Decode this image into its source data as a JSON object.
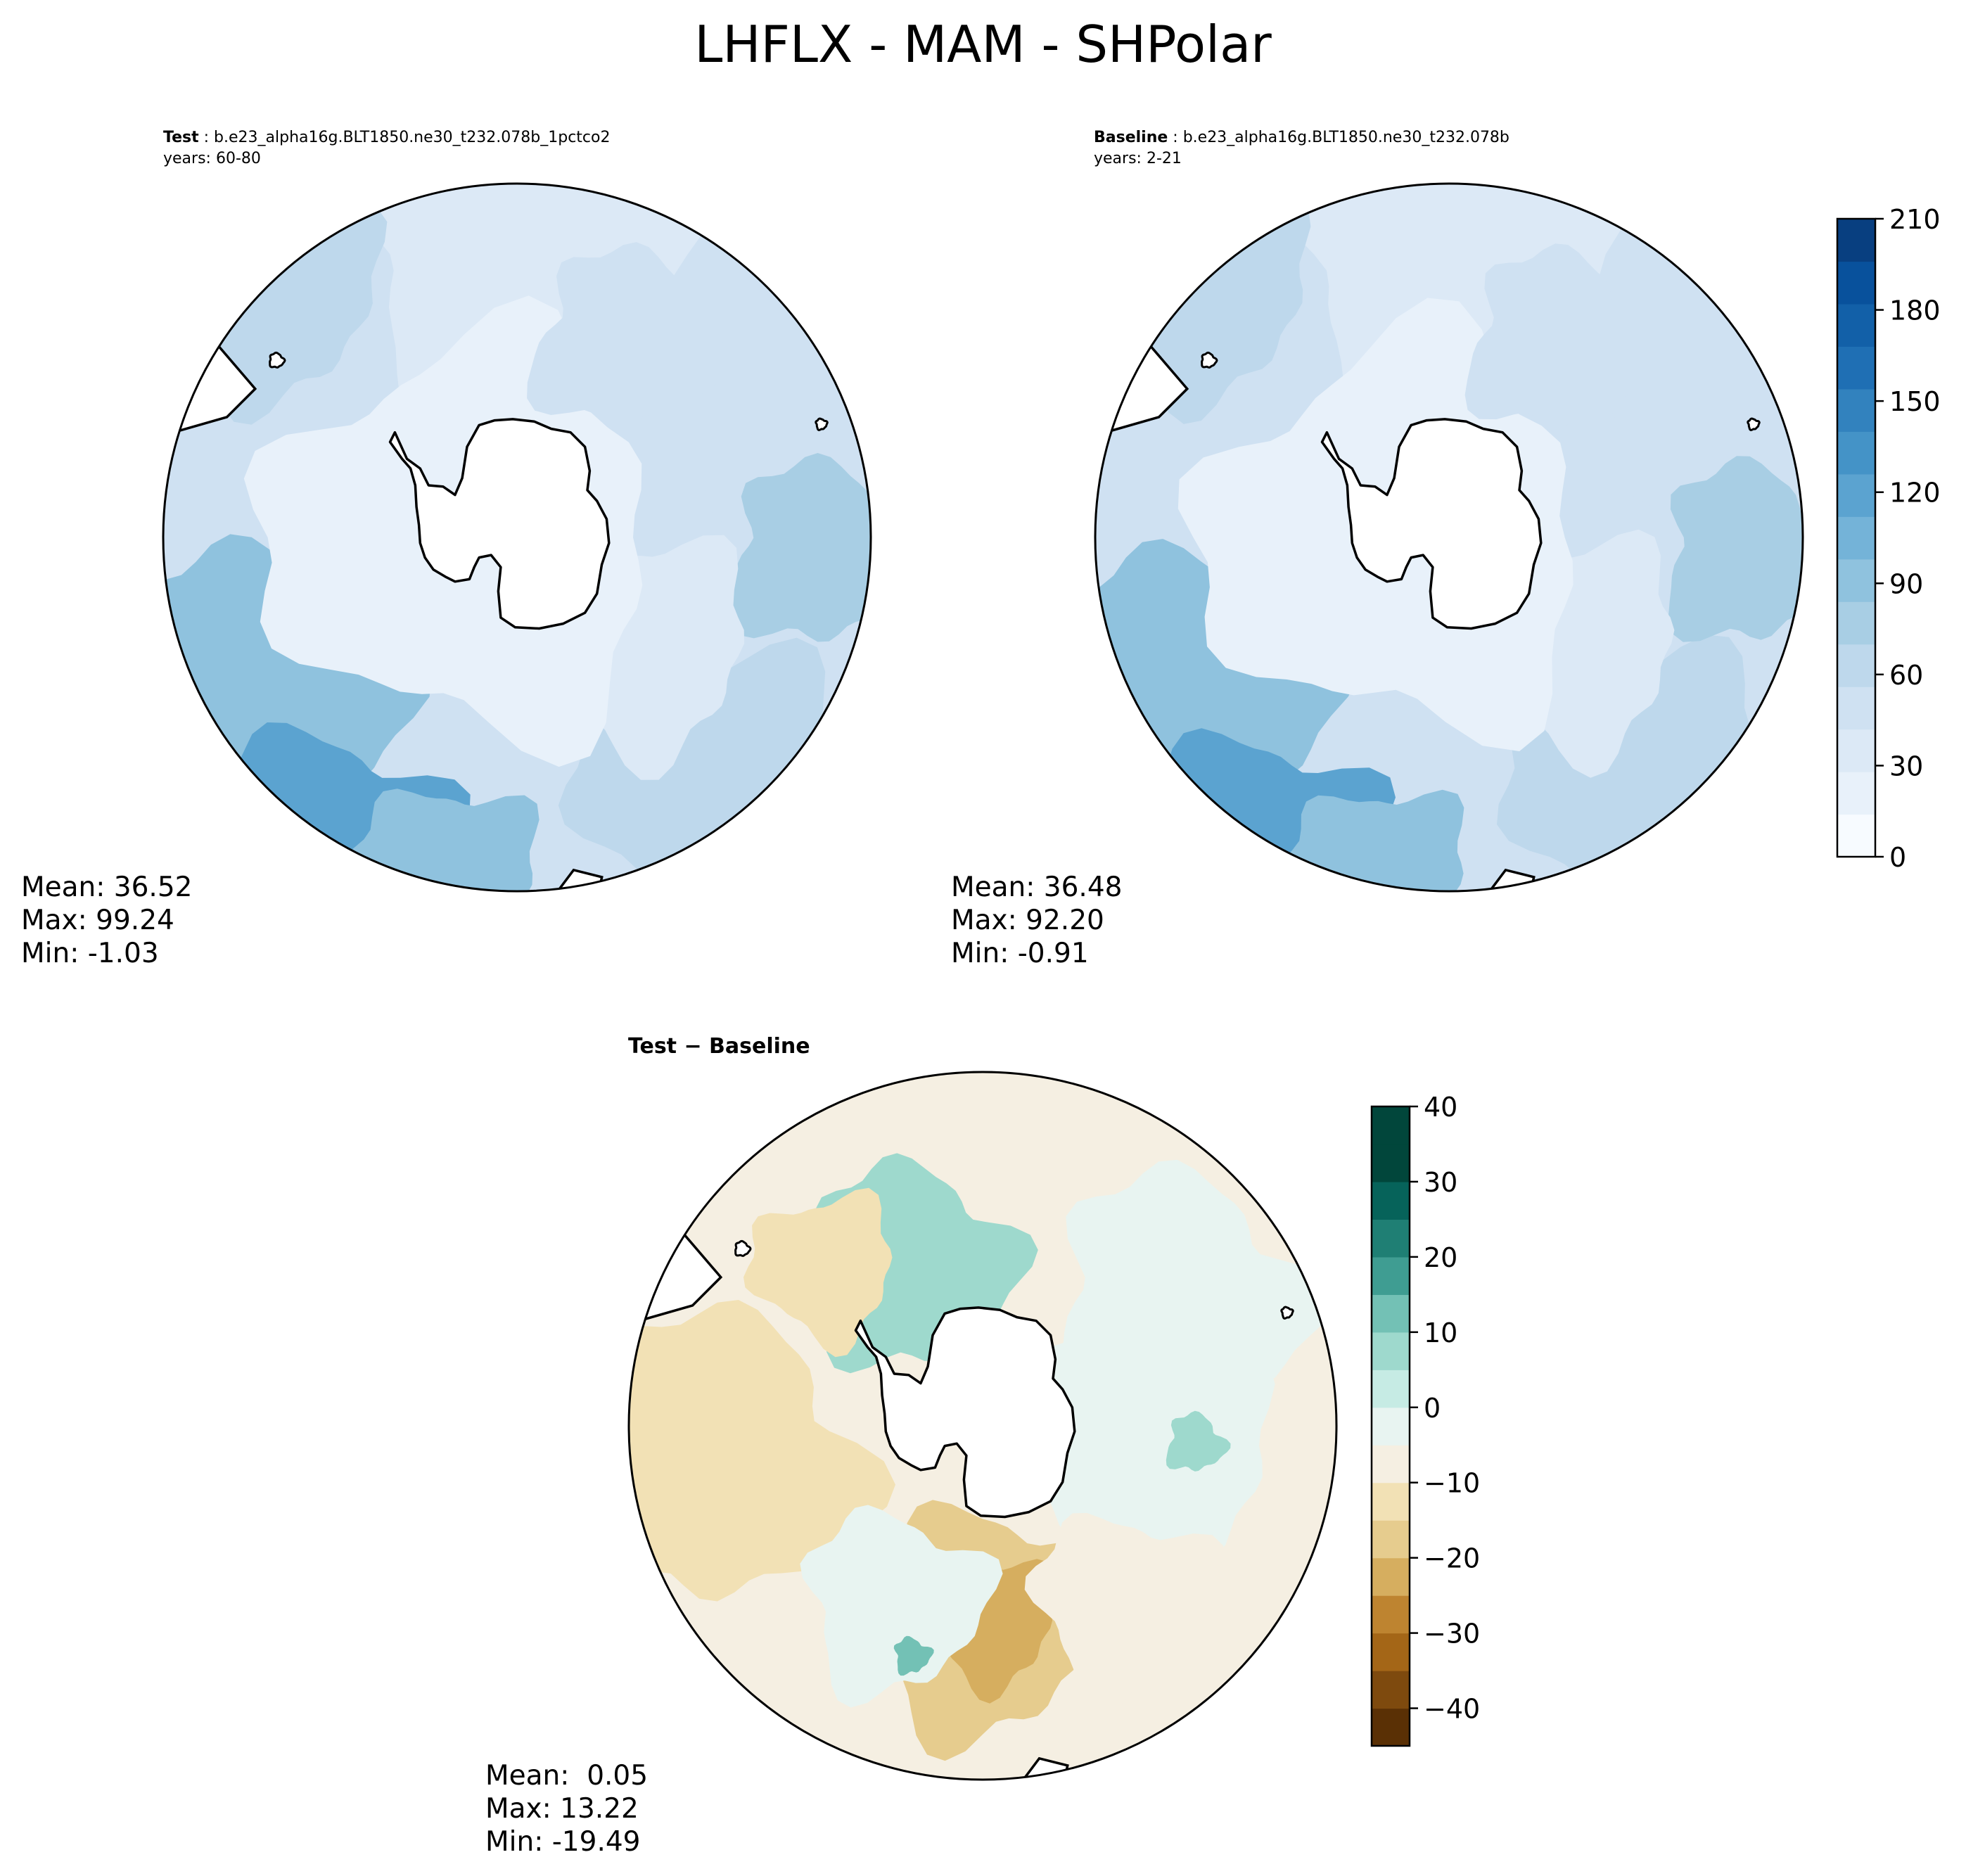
{
  "figure_title": "LHFLX - MAM - SHPolar",
  "colors": {
    "land": "#ffffff",
    "coastline": "#000000",
    "blues": [
      "#f7fbff",
      "#e8f1fa",
      "#dce9f6",
      "#cfe1f2",
      "#bed8ec",
      "#a8cee4",
      "#8fc2de",
      "#74b3d8",
      "#5ba3d0",
      "#4493c7",
      "#3282be",
      "#1f6fb4",
      "#1260a8",
      "#08519c",
      "#083f80",
      "#08306b"
    ],
    "diverging": [
      "#5a3005",
      "#7e4a0e",
      "#a46617",
      "#be8430",
      "#d6ae5f",
      "#e6cc8e",
      "#f2e1b5",
      "#f5efe2",
      "#e8f4f1",
      "#c6ebe4",
      "#9ed9cd",
      "#73c1b5",
      "#3f9d92",
      "#1f7f74",
      "#06635a",
      "#01463b"
    ]
  },
  "panels": [
    {
      "id": "test",
      "label_bold": "Test",
      "label_rest": " : b.e23_alpha16g.BLT1850.ne30_t232.078b_1pctco2",
      "years": "years: 60-80",
      "mean": "Mean: 36.52",
      "max": "Max: 99.24",
      "min": "Min: -1.03"
    },
    {
      "id": "baseline",
      "label_bold": "Baseline",
      "label_rest": " : b.e23_alpha16g.BLT1850.ne30_t232.078b",
      "years": "years: 2-21",
      "mean": "Mean: 36.48",
      "max": "Max: 92.20",
      "min": "Min: -0.91"
    },
    {
      "id": "diff",
      "title": "Test − Baseline",
      "mean": "Mean:  0.05",
      "max": "Max: 13.22",
      "min": "Min: -19.49"
    }
  ],
  "chart_data": [
    {
      "type": "heatmap",
      "panel": "test",
      "projection": "south-polar-stereographic",
      "colorbar_ticks": [
        0,
        30,
        60,
        90,
        120,
        150,
        180,
        210
      ],
      "colorbar_tick_labels": [
        "0",
        "30",
        "60",
        "90",
        "120",
        "150",
        "180",
        "210"
      ],
      "colorbar_range": [
        0,
        210
      ],
      "colorbar_levels": 15,
      "stats": {
        "mean": 36.52,
        "max": 99.24,
        "min": -1.03
      }
    },
    {
      "type": "heatmap",
      "panel": "baseline",
      "projection": "south-polar-stereographic",
      "colorbar_ticks": [
        0,
        30,
        60,
        90,
        120,
        150,
        180,
        210
      ],
      "colorbar_tick_labels": [
        "0",
        "30",
        "60",
        "90",
        "120",
        "150",
        "180",
        "210"
      ],
      "colorbar_range": [
        0,
        210
      ],
      "colorbar_levels": 15,
      "stats": {
        "mean": 36.48,
        "max": 92.2,
        "min": -0.91
      }
    },
    {
      "type": "heatmap",
      "panel": "diff",
      "projection": "south-polar-stereographic",
      "colorbar_ticks": [
        -40,
        -30,
        -20,
        -10,
        0,
        10,
        20,
        30,
        40
      ],
      "colorbar_tick_labels": [
        "−40",
        "−30",
        "−20",
        "−10",
        "0",
        "10",
        "20",
        "30",
        "40"
      ],
      "colorbar_range": [
        -45,
        40
      ],
      "colorbar_levels": 17,
      "stats": {
        "mean": 0.05,
        "max": 13.22,
        "min": -19.49
      }
    }
  ]
}
